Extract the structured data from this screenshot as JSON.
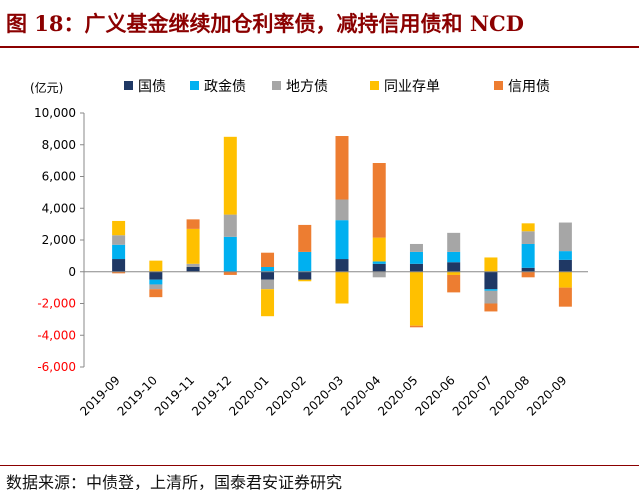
{
  "header": {
    "title": "图 18：广义基金继续加仓利率债，减持信用债和 NCD"
  },
  "footer": {
    "source": "数据来源：中债登，上清所，国泰君安证券研究"
  },
  "chart_data": {
    "type": "bar",
    "stacked": true,
    "ylabel": "(亿元)",
    "ylim": [
      -6000,
      10000
    ],
    "yticks": [
      -6000,
      -4000,
      -2000,
      0,
      2000,
      4000,
      6000,
      8000,
      10000
    ],
    "ytick_labels": [
      "-6,000",
      "-4,000",
      "-2,000",
      "0",
      "2,000",
      "4,000",
      "6,000",
      "8,000",
      "10,000"
    ],
    "legend_position": "top",
    "grid": false,
    "categories": [
      "2019-09",
      "2019-10",
      "2019-11",
      "2019-12",
      "2020-01",
      "2020-02",
      "2020-03",
      "2020-04",
      "2020-05",
      "2020-06",
      "2020-07",
      "2020-08",
      "2020-09"
    ],
    "series": [
      {
        "name": "国债",
        "color": "#1f3864",
        "values": [
          800,
          -500,
          300,
          0,
          -500,
          -500,
          800,
          500,
          500,
          600,
          -1100,
          250,
          750
        ]
      },
      {
        "name": "政金债",
        "color": "#00b0f0",
        "values": [
          900,
          -300,
          0,
          2200,
          300,
          1250,
          2450,
          150,
          750,
          650,
          -100,
          1500,
          550
        ]
      },
      {
        "name": "地方债",
        "color": "#a6a6a6",
        "values": [
          600,
          -300,
          200,
          1400,
          -600,
          0,
          1300,
          -350,
          500,
          1200,
          -800,
          800,
          1800
        ]
      },
      {
        "name": "同业存单",
        "color": "#ffc000",
        "values": [
          900,
          700,
          2200,
          4900,
          -1700,
          -100,
          -2000,
          1500,
          -3400,
          -200,
          900,
          500,
          -1000
        ]
      },
      {
        "name": "信用债",
        "color": "#ed7d31",
        "values": [
          -100,
          -500,
          600,
          -200,
          900,
          1700,
          4000,
          4700,
          -100,
          -1100,
          -500,
          -350,
          -1200
        ]
      }
    ]
  }
}
